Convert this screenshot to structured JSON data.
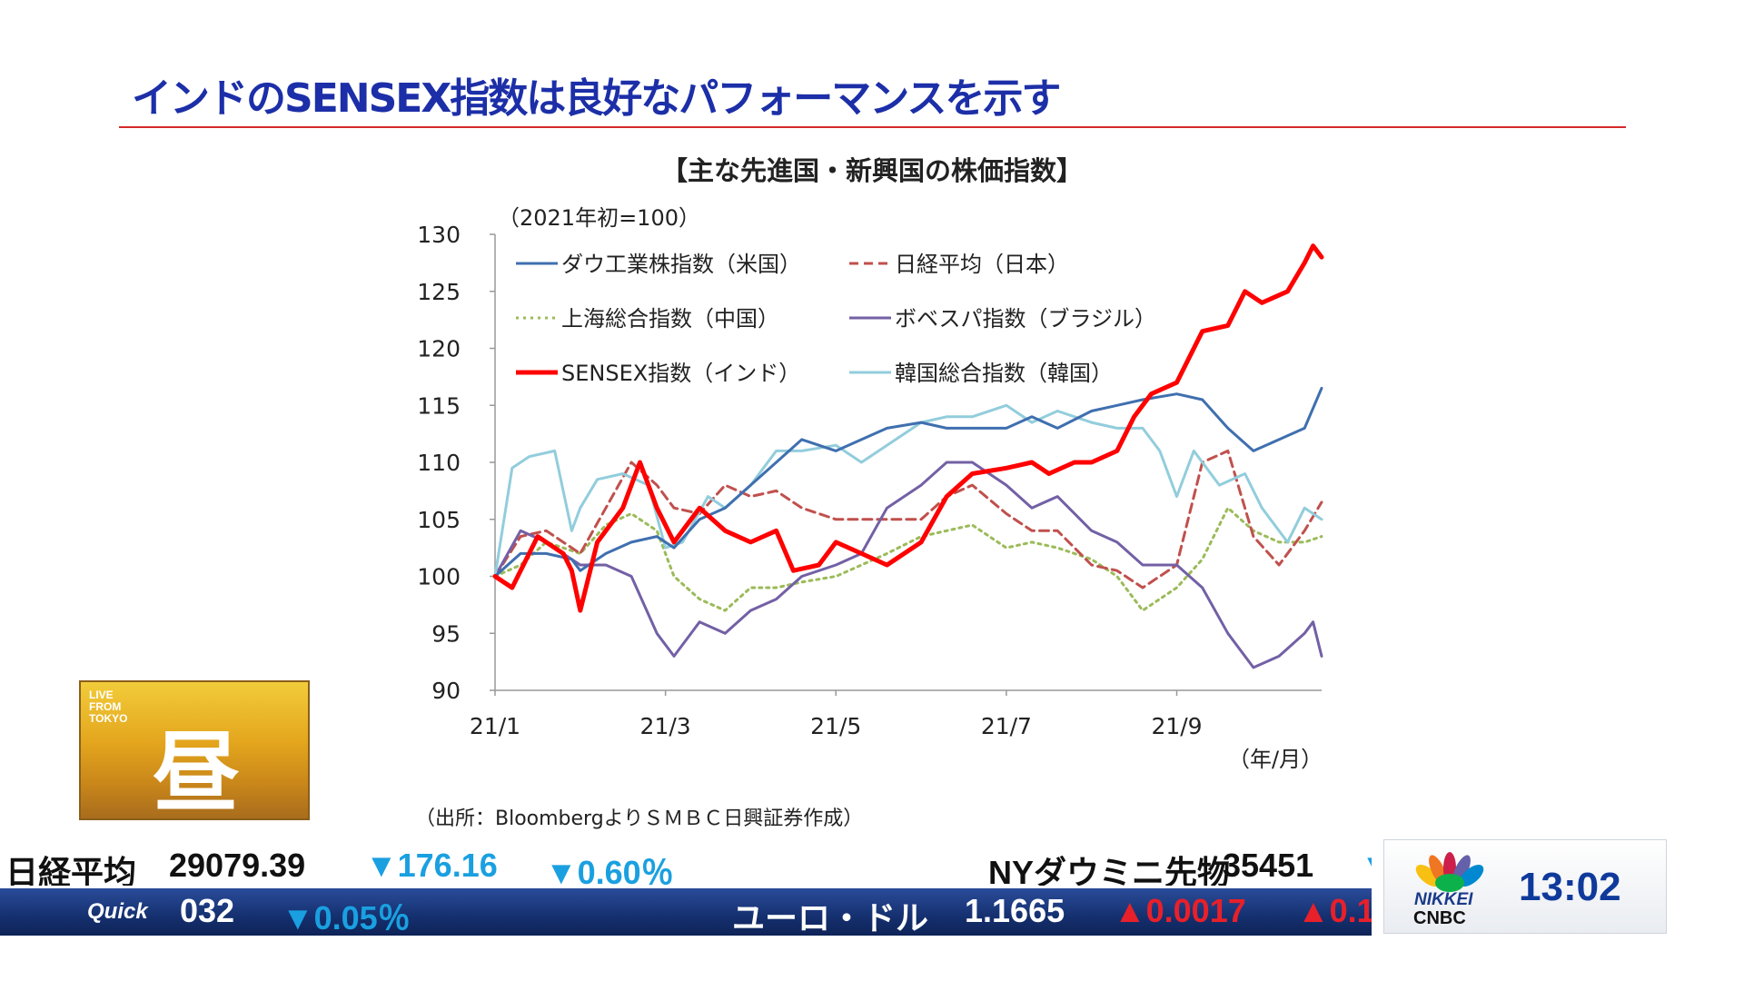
{
  "slide": {
    "title": "インドのSENSEX指数は良好なパフォーマンスを示す",
    "source": "（出所：BloombergよりＳＭＢＣ日興証券作成）"
  },
  "chart_data": {
    "type": "line",
    "title": "【主な先進国・新興国の株価指数】",
    "unit_note": "（2021年初=100）",
    "xlabel": "（年/月）",
    "ylim": [
      90,
      130
    ],
    "yticks": [
      90,
      95,
      100,
      105,
      110,
      115,
      120,
      125,
      130
    ],
    "ytick_labels": [
      "90",
      "95",
      "100",
      "105",
      "110",
      "115",
      "120",
      "125",
      "130"
    ],
    "xlim": [
      0,
      9.7
    ],
    "xticks": [
      0,
      2,
      4,
      6,
      8
    ],
    "xtick_labels": [
      "21/1",
      "21/3",
      "21/5",
      "21/7",
      "21/9"
    ],
    "legend": [
      "ダウ工業株指数（米国）",
      "日経平均（日本）",
      "上海総合指数（中国）",
      "ボベスパ指数（ブラジル）",
      "SENSEX指数（インド）",
      "韓国総合指数（韓国）"
    ],
    "series": [
      {
        "name": "ダウ工業株指数（米国）",
        "color": "#3f6faf",
        "style": "solid",
        "width": 3,
        "x": [
          0,
          0.3,
          0.6,
          0.9,
          1.0,
          1.3,
          1.6,
          1.9,
          2.1,
          2.4,
          2.7,
          3.0,
          3.3,
          3.6,
          4.0,
          4.3,
          4.6,
          5.0,
          5.3,
          5.6,
          6.0,
          6.3,
          6.6,
          7.0,
          7.3,
          7.6,
          8.0,
          8.3,
          8.6,
          8.9,
          9.2,
          9.5,
          9.7
        ],
        "y": [
          100,
          102,
          102,
          101.5,
          100.5,
          102,
          103,
          103.5,
          102.5,
          105,
          106,
          108,
          110,
          112,
          111,
          112,
          113,
          113.5,
          113,
          113,
          113,
          114,
          113,
          114.5,
          115,
          115.5,
          116,
          115.5,
          113,
          111,
          112,
          113,
          116.5
        ]
      },
      {
        "name": "日経平均（日本）",
        "color": "#c0504d",
        "style": "dashed",
        "width": 3,
        "x": [
          0,
          0.3,
          0.6,
          1.0,
          1.3,
          1.6,
          1.9,
          2.1,
          2.4,
          2.7,
          3.0,
          3.3,
          3.6,
          4.0,
          4.3,
          4.6,
          5.0,
          5.3,
          5.6,
          6.0,
          6.3,
          6.6,
          7.0,
          7.3,
          7.6,
          8.0,
          8.3,
          8.6,
          8.9,
          9.2,
          9.5,
          9.7
        ],
        "y": [
          100,
          103.5,
          104,
          102,
          106,
          110,
          108,
          106,
          105.5,
          108,
          107,
          107.5,
          106,
          105,
          105,
          105,
          105,
          107,
          108,
          105.5,
          104,
          104,
          101,
          100.5,
          99,
          101,
          110,
          111,
          103.5,
          101,
          104,
          106.5
        ]
      },
      {
        "name": "上海総合指数（中国）",
        "color": "#9bbb59",
        "style": "dotted",
        "width": 3,
        "x": [
          0,
          0.3,
          0.6,
          1.0,
          1.3,
          1.6,
          1.9,
          2.1,
          2.4,
          2.7,
          3.0,
          3.3,
          3.6,
          4.0,
          4.3,
          4.6,
          5.0,
          5.3,
          5.6,
          6.0,
          6.3,
          6.6,
          7.0,
          7.3,
          7.6,
          8.0,
          8.3,
          8.6,
          8.9,
          9.2,
          9.5,
          9.7
        ],
        "y": [
          100,
          101,
          103,
          102,
          104.5,
          105.5,
          104,
          100,
          98,
          97,
          99,
          99,
          99.5,
          100,
          101,
          102,
          103.5,
          104,
          104.5,
          102.5,
          103,
          102.5,
          101.5,
          100,
          97,
          99,
          101.5,
          106,
          104,
          103,
          103,
          103.5
        ]
      },
      {
        "name": "ボベスパ指数（ブラジル）",
        "color": "#7360a5",
        "style": "solid",
        "width": 3,
        "x": [
          0,
          0.3,
          0.6,
          1.0,
          1.3,
          1.6,
          1.9,
          2.1,
          2.4,
          2.7,
          3.0,
          3.3,
          3.6,
          4.0,
          4.3,
          4.6,
          5.0,
          5.3,
          5.6,
          6.0,
          6.3,
          6.6,
          7.0,
          7.3,
          7.6,
          8.0,
          8.3,
          8.6,
          8.9,
          9.2,
          9.5,
          9.6,
          9.7
        ],
        "y": [
          100,
          104,
          103,
          101,
          101,
          100,
          95,
          93,
          96,
          95,
          97,
          98,
          100,
          101,
          102,
          106,
          108,
          110,
          110,
          108,
          106,
          107,
          104,
          103,
          101,
          101,
          99,
          95,
          92,
          93,
          95,
          96,
          93
        ]
      },
      {
        "name": "SENSEX指数（インド）",
        "color": "#ff0000",
        "style": "solid",
        "width": 5,
        "x": [
          0,
          0.2,
          0.5,
          0.8,
          0.9,
          1.0,
          1.2,
          1.5,
          1.7,
          1.9,
          2.1,
          2.4,
          2.7,
          3.0,
          3.3,
          3.5,
          3.8,
          4.0,
          4.3,
          4.6,
          5.0,
          5.3,
          5.6,
          6.0,
          6.3,
          6.5,
          6.8,
          7.0,
          7.3,
          7.5,
          7.7,
          8.0,
          8.3,
          8.6,
          8.8,
          9.0,
          9.3,
          9.5,
          9.6,
          9.7
        ],
        "y": [
          100,
          99,
          103.5,
          102,
          100.5,
          97,
          103,
          106,
          110,
          106,
          103,
          106,
          104,
          103,
          104,
          100.5,
          101,
          103,
          102,
          101,
          103,
          107,
          109,
          109.5,
          110,
          109,
          110,
          110,
          111,
          114,
          116,
          117,
          121.5,
          122,
          125,
          124,
          125,
          127.5,
          129,
          128
        ]
      },
      {
        "name": "韓国総合指数（韓国）",
        "color": "#92cddc",
        "style": "solid",
        "width": 3,
        "x": [
          0,
          0.2,
          0.4,
          0.7,
          0.9,
          1.0,
          1.2,
          1.5,
          1.8,
          2.0,
          2.2,
          2.5,
          2.7,
          3.0,
          3.3,
          3.6,
          4.0,
          4.3,
          4.6,
          5.0,
          5.3,
          5.6,
          6.0,
          6.3,
          6.6,
          7.0,
          7.3,
          7.6,
          7.8,
          8.0,
          8.2,
          8.5,
          8.8,
          9.0,
          9.3,
          9.5,
          9.7
        ],
        "y": [
          100,
          109.5,
          110.5,
          111,
          104,
          106,
          108.5,
          109,
          108,
          102.5,
          103,
          107,
          106,
          108,
          111,
          111,
          111.5,
          110,
          111.5,
          113.5,
          114,
          114,
          115,
          113.5,
          114.5,
          113.5,
          113,
          113,
          111,
          107,
          111,
          108,
          109,
          106,
          103,
          106,
          105
        ]
      }
    ]
  },
  "badge": {
    "small_text": [
      "LIVE",
      "FROM",
      "TOKYO"
    ],
    "kanji": "昼"
  },
  "ticker_top": {
    "items": [
      {
        "label": "日経平均",
        "value": "29079.39",
        "change": "▼176.16",
        "pct": "▼0.60％"
      },
      {
        "label": "NYダウミニ先物",
        "value": "35451",
        "change": "▼"
      }
    ]
  },
  "ticker_bottom": {
    "brand": "Quick",
    "items": [
      {
        "value": "032",
        "pct": "▼0.05％"
      },
      {
        "label": "ユーロ・ドル",
        "value": "1.1665",
        "change": "▲0.0017",
        "pct": "▲0.1"
      }
    ]
  },
  "broadcaster": {
    "nikkei": "NIKKEI",
    "cnbc": "CNBC",
    "time": "13:02"
  },
  "colors": {
    "title": "#1c2fa8",
    "rule": "#d42a2a",
    "clock": "#0f3a9c"
  }
}
